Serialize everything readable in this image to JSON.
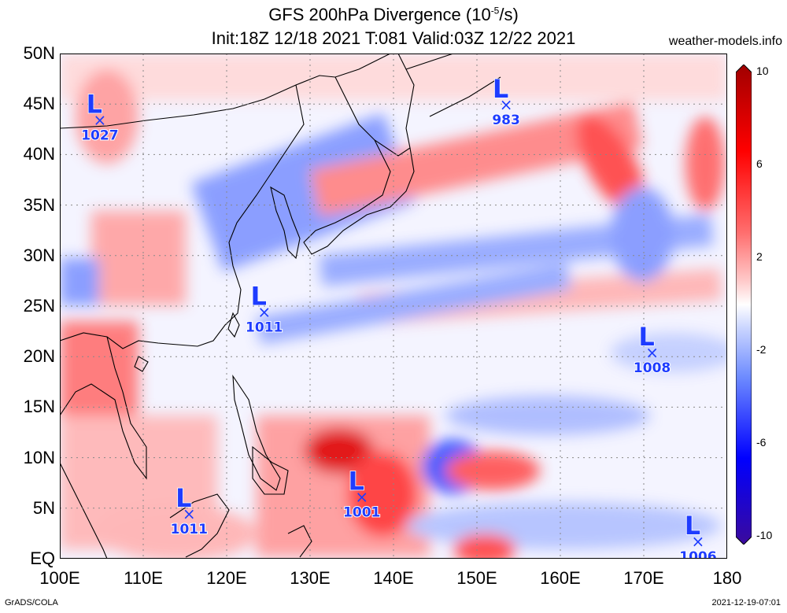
{
  "title": {
    "line1": "GFS 200hPa Divergence (10",
    "line1_sup": "-5",
    "line1_end": "/s)",
    "line2": "Init:18Z 12/18 2021 T:081 Valid:03Z 12/22 2021"
  },
  "site": "weather-models.info",
  "footer_left": "GrADS/COLA",
  "footer_right": "2021-12-19-07:01",
  "axes": {
    "lat_labels": [
      "50N",
      "45N",
      "40N",
      "35N",
      "30N",
      "25N",
      "20N",
      "15N",
      "10N",
      "5N",
      "EQ"
    ],
    "lon_labels": [
      "100E",
      "110E",
      "120E",
      "130E",
      "140E",
      "150E",
      "160E",
      "170E",
      "180"
    ],
    "lat_range": [
      0,
      50
    ],
    "lon_range": [
      100,
      180
    ]
  },
  "colorbar": {
    "labels": [
      "10",
      "6",
      "2",
      "-2",
      "-6",
      "-10"
    ],
    "colors": [
      "#3b0a9c",
      "#0000ff",
      "#6e8cff",
      "#c9d4ff",
      "#ffffff",
      "#ffc9c9",
      "#ff6e6e",
      "#ff0000",
      "#a00000"
    ]
  },
  "lows": [
    {
      "label": "L",
      "pressure": "1027",
      "lon": 104.8,
      "lat": 43.5
    },
    {
      "label": "L",
      "pressure": "983",
      "lon": 153.5,
      "lat": 45.0
    },
    {
      "label": "L",
      "pressure": "1011",
      "lon": 124.5,
      "lat": 24.5
    },
    {
      "label": "L",
      "pressure": "1008",
      "lon": 171.0,
      "lat": 20.5
    },
    {
      "label": "L",
      "pressure": "1011",
      "lon": 115.5,
      "lat": 4.5
    },
    {
      "label": "L",
      "pressure": "1001",
      "lon": 136.2,
      "lat": 6.2
    },
    {
      "label": "L",
      "pressure": "1006",
      "lon": 176.5,
      "lat": 1.8
    }
  ]
}
